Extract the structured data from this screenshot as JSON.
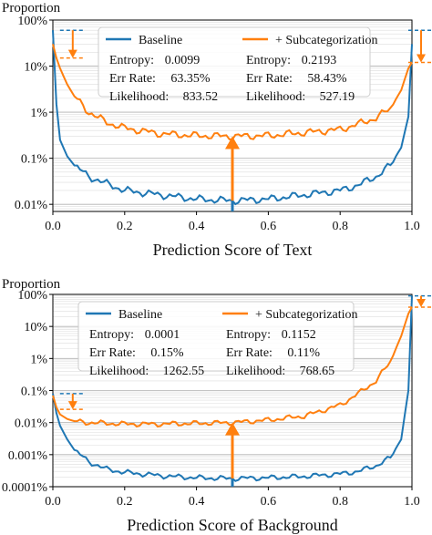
{
  "colors": {
    "baseline": "#1f77b4",
    "subcat": "#ff7f0e",
    "highlight": "#d62728"
  },
  "chart_data": [
    {
      "type": "line",
      "ylabel": "Proportion",
      "xlabel": "Prediction Score of Text",
      "yscale": "log",
      "xlim": [
        0.0,
        1.0
      ],
      "ylim": [
        7e-05,
        1.0
      ],
      "xticks": [
        0.0,
        0.2,
        0.4,
        0.6,
        0.8,
        1.0
      ],
      "xtick_labels": [
        "0.0",
        "0.2",
        "0.4",
        "0.6",
        "0.8",
        "1.0"
      ],
      "yticks": [
        0.0001,
        0.001,
        0.01,
        0.1,
        1.0
      ],
      "ytick_labels": [
        "0.01%",
        "0.1%",
        "1%",
        "10%",
        "100%"
      ],
      "grid": true,
      "legend_position": "top",
      "series": [
        {
          "name": "Baseline",
          "color": "#1f77b4",
          "x": [
            0.0,
            0.01,
            0.02,
            0.04,
            0.06,
            0.1,
            0.15,
            0.2,
            0.3,
            0.4,
            0.5,
            0.6,
            0.7,
            0.8,
            0.85,
            0.9,
            0.94,
            0.97,
            0.99,
            1.0
          ],
          "y": [
            0.6,
            0.015,
            0.0025,
            0.0011,
            0.0007,
            0.0004,
            0.00028,
            0.0002,
            0.00016,
            0.00013,
            0.00012,
            0.00013,
            0.00016,
            0.0002,
            0.00026,
            0.0004,
            0.0007,
            0.0017,
            0.008,
            0.3
          ],
          "stats": [
            {
              "label": "Entropy:",
              "value": "0.0099"
            },
            {
              "label": "Err Rate:",
              "value": "63.35%"
            },
            {
              "label": "Likelihood:",
              "value": "833.52"
            }
          ]
        },
        {
          "name": "+ Subcategorization",
          "color": "#ff7f0e",
          "x": [
            0.0,
            0.01,
            0.02,
            0.04,
            0.06,
            0.1,
            0.15,
            0.2,
            0.3,
            0.4,
            0.5,
            0.6,
            0.7,
            0.8,
            0.85,
            0.9,
            0.94,
            0.97,
            0.99,
            1.0
          ],
          "y": [
            0.3,
            0.15,
            0.09,
            0.04,
            0.022,
            0.01,
            0.006,
            0.0045,
            0.0034,
            0.0031,
            0.003,
            0.0031,
            0.0036,
            0.0042,
            0.0055,
            0.0075,
            0.012,
            0.03,
            0.09,
            0.12
          ],
          "stats": [
            {
              "label": "Entropy:",
              "value": "0.2193"
            },
            {
              "label": "Err Rate:",
              "value": "58.43%"
            },
            {
              "label": "Likelihood:",
              "value": "527.19"
            }
          ]
        }
      ],
      "annotations": [
        {
          "kind": "arrow-up",
          "x": 0.5,
          "from": 0.00012,
          "to": 0.003
        },
        {
          "kind": "arrow-down",
          "x": 0.03,
          "from": 0.6,
          "to": 0.15
        },
        {
          "kind": "arrow-down",
          "x": 1.0,
          "from": 0.6,
          "to": 0.12
        }
      ]
    },
    {
      "type": "line",
      "ylabel": "Proportion",
      "xlabel": "Prediction Score of Background",
      "yscale": "log",
      "xlim": [
        0.0,
        1.0
      ],
      "ylim": [
        1e-06,
        1.0
      ],
      "xticks": [
        0.0,
        0.2,
        0.4,
        0.6,
        0.8,
        1.0
      ],
      "xtick_labels": [
        "0.0",
        "0.2",
        "0.4",
        "0.6",
        "0.8",
        "1.0"
      ],
      "yticks": [
        1e-06,
        1e-05,
        0.0001,
        0.001,
        0.01,
        0.1,
        1.0
      ],
      "ytick_labels": [
        "0.0001%",
        "0.001%",
        "0.01%",
        "0.1%",
        "1%",
        "10%",
        "100%"
      ],
      "grid": true,
      "legend_position": "top",
      "series": [
        {
          "name": "Baseline",
          "color": "#1f77b4",
          "x": [
            0.0,
            0.01,
            0.02,
            0.04,
            0.06,
            0.1,
            0.15,
            0.2,
            0.3,
            0.4,
            0.5,
            0.6,
            0.7,
            0.8,
            0.85,
            0.9,
            0.94,
            0.97,
            0.99,
            1.0
          ],
          "y": [
            0.0008,
            0.0002,
            8e-05,
            3e-05,
            1.4e-05,
            6e-06,
            3.5e-06,
            2.8e-06,
            2.2e-06,
            1.9e-06,
            1.8e-06,
            1.9e-06,
            2.1e-06,
            2.5e-06,
            3e-06,
            4.5e-06,
            8e-06,
            3e-05,
            0.001,
            0.9
          ],
          "stats": [
            {
              "label": "Entropy:",
              "value": "0.0001"
            },
            {
              "label": "Err Rate:",
              "value": "0.15%"
            },
            {
              "label": "Likelihood:",
              "value": "1262.55"
            }
          ]
        },
        {
          "name": "+ Subcategorization",
          "color": "#ff7f0e",
          "x": [
            0.0,
            0.01,
            0.02,
            0.04,
            0.06,
            0.1,
            0.15,
            0.2,
            0.3,
            0.4,
            0.5,
            0.6,
            0.7,
            0.8,
            0.85,
            0.9,
            0.94,
            0.97,
            0.99,
            1.0
          ],
          "y": [
            0.0007,
            0.0003,
            0.00018,
            0.00013,
            0.00011,
            0.0001,
            9.5e-05,
            9e-05,
            9e-05,
            9.5e-05,
            0.0001,
            0.00012,
            0.00016,
            0.00035,
            0.0008,
            0.002,
            0.008,
            0.05,
            0.25,
            0.4
          ],
          "stats": [
            {
              "label": "Entropy:",
              "value": "0.1152"
            },
            {
              "label": "Err Rate:",
              "value": "0.11%"
            },
            {
              "label": "Likelihood:",
              "value": "768.65"
            }
          ]
        }
      ],
      "annotations": [
        {
          "kind": "arrow-up",
          "x": 0.5,
          "from": 1.8e-06,
          "to": 0.0001
        },
        {
          "kind": "arrow-down",
          "x": 0.03,
          "from": 0.0008,
          "to": 0.00026
        },
        {
          "kind": "arrow-down",
          "x": 1.0,
          "from": 0.9,
          "to": 0.4
        }
      ]
    }
  ]
}
